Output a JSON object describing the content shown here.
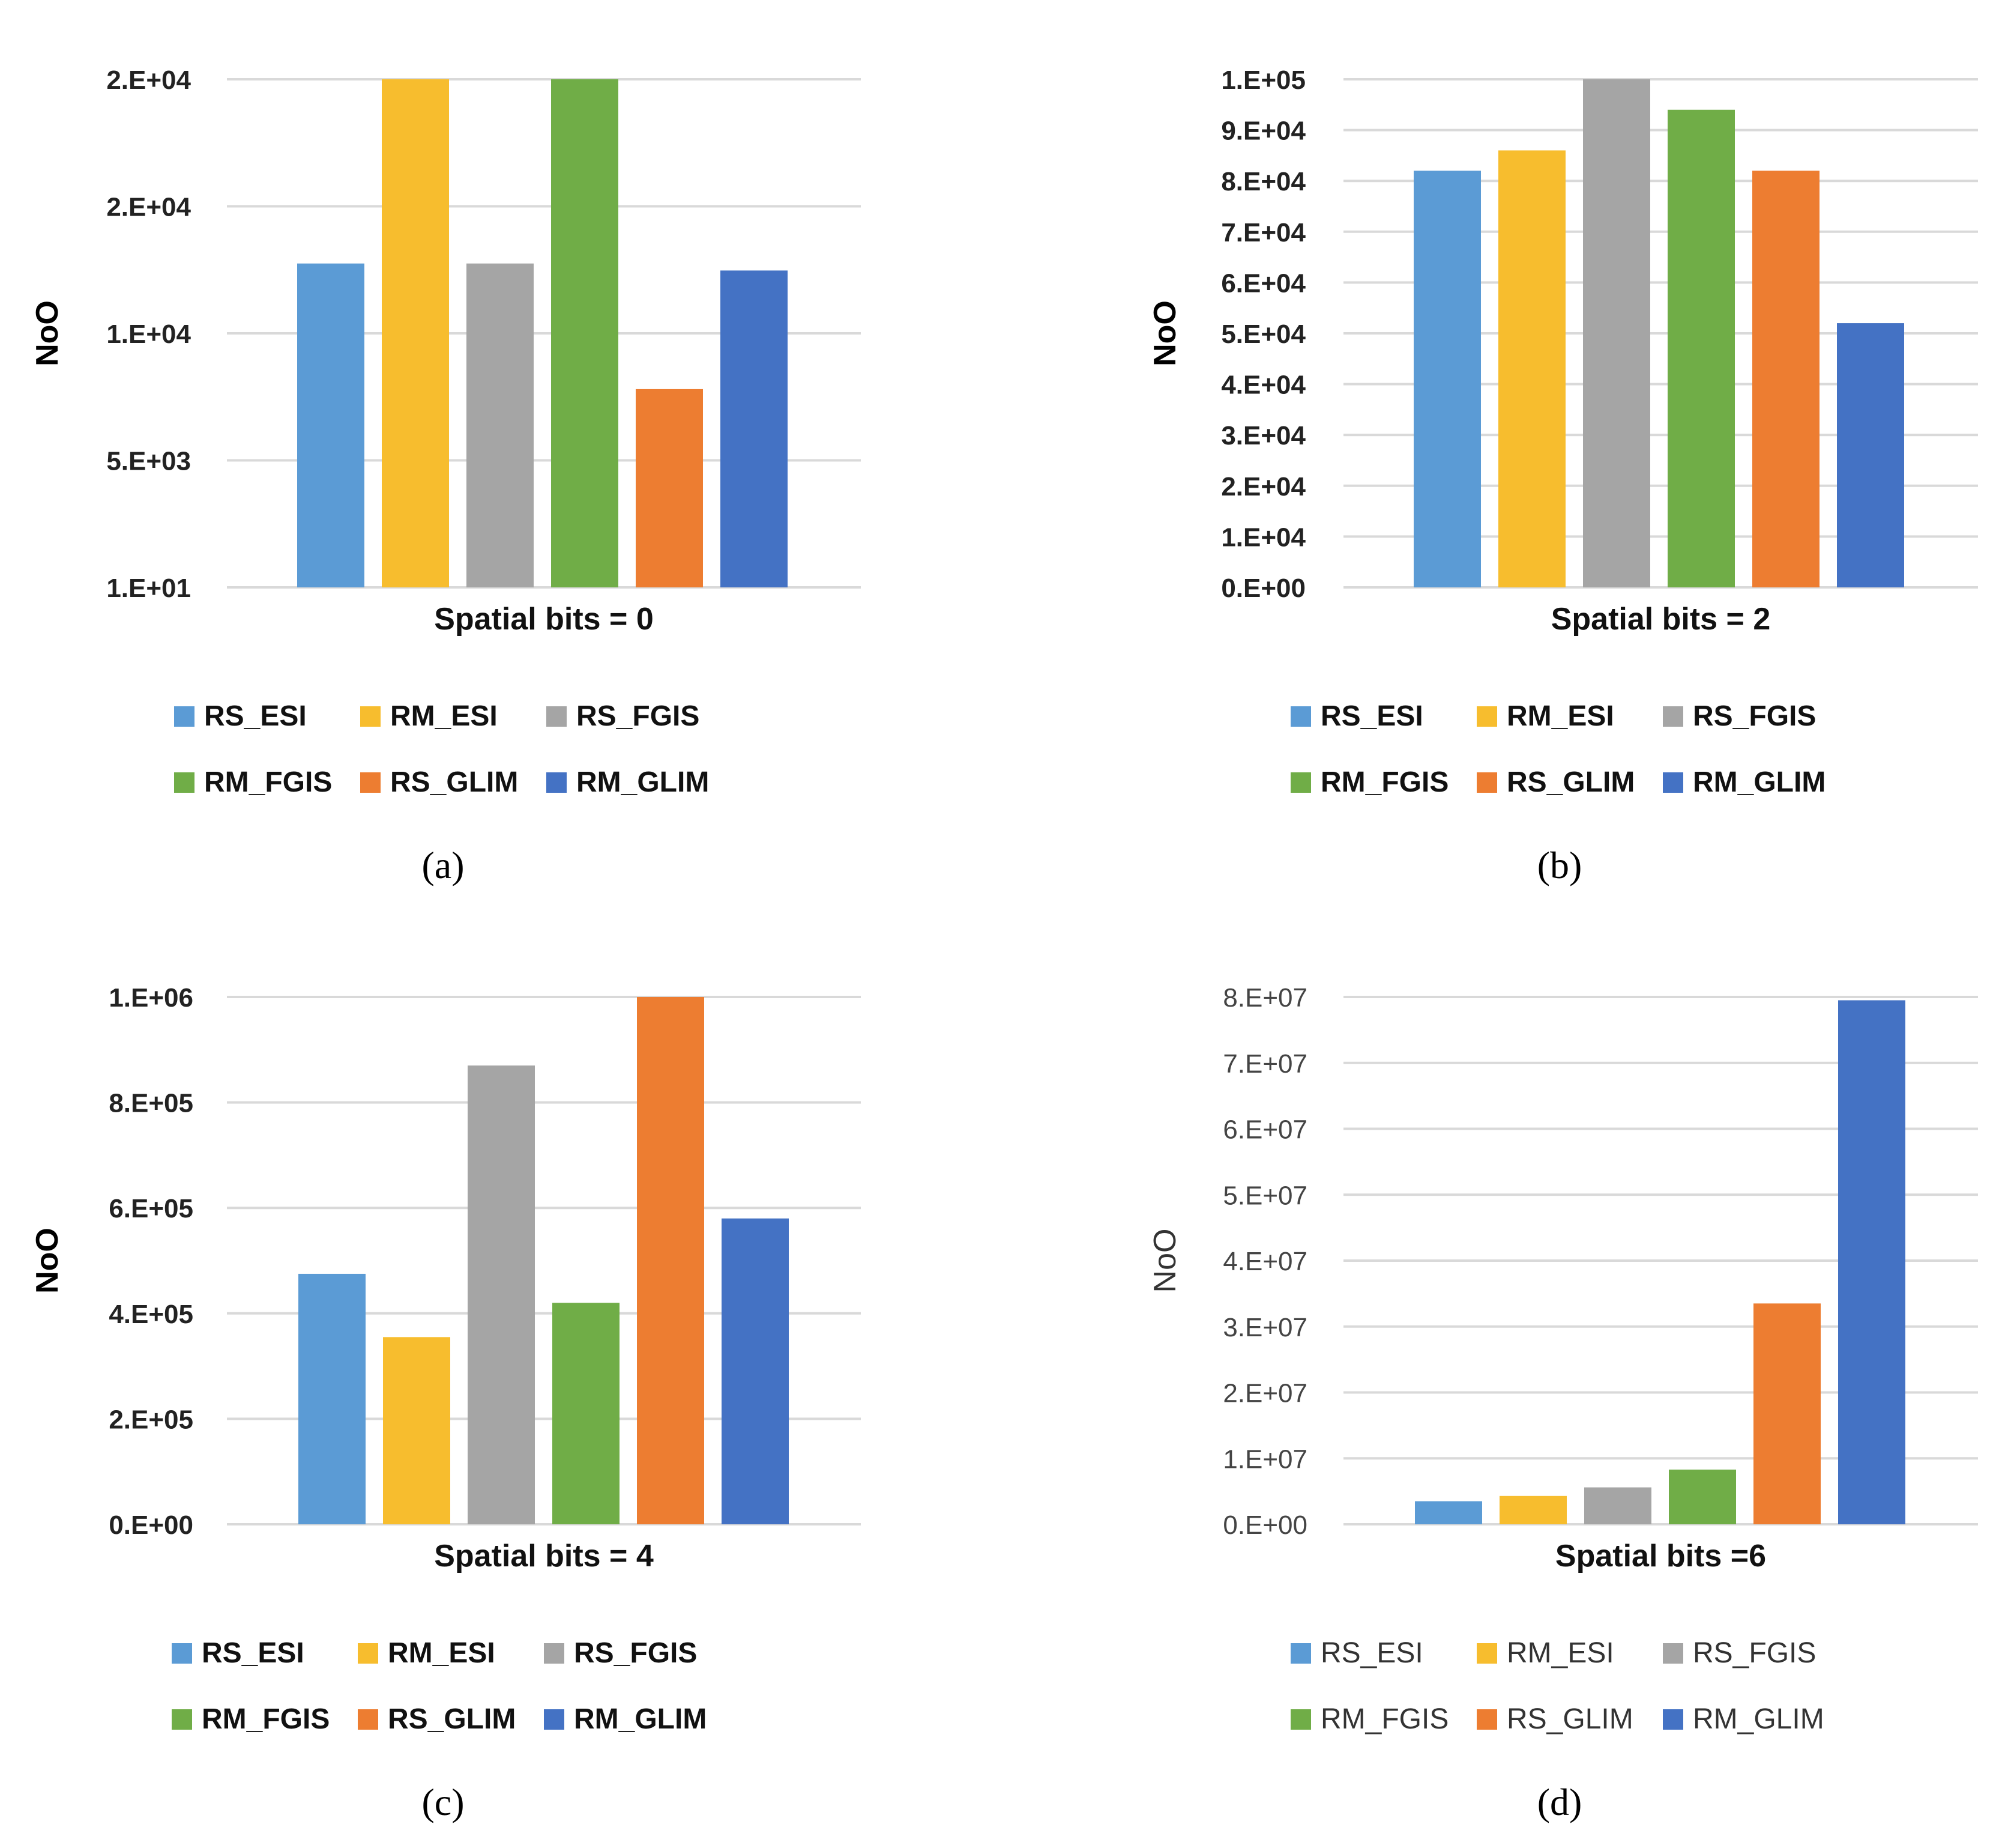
{
  "colors": {
    "RS_ESI": "#5b9bd5",
    "RM_ESI": "#f7bd2e",
    "RS_FGIS": "#a5a5a5",
    "RM_FGIS": "#70ad47",
    "RS_GLIM": "#ed7d31",
    "RM_GLIM": "#4472c4"
  },
  "chart_data": [
    {
      "type": "bar",
      "caption": "(a)",
      "xlabel": "Spatial bits = 0",
      "ylabel": "NoO",
      "ytick_labels": [
        "1.E+01",
        "5.E+03",
        "1.E+04",
        "2.E+04",
        "2.E+04"
      ],
      "ylim": [
        10,
        21000
      ],
      "series": [
        {
          "name": "RS_ESI",
          "value": 13390
        },
        {
          "name": "RM_ESI",
          "value": 21000
        },
        {
          "name": "RS_FGIS",
          "value": 13390
        },
        {
          "name": "RM_FGIS",
          "value": 21000
        },
        {
          "name": "RS_GLIM",
          "value": 8200
        },
        {
          "name": "RM_GLIM",
          "value": 13100
        }
      ],
      "legend": [
        "RS_ESI",
        "RM_ESI",
        "RS_FGIS",
        "RM_FGIS",
        "RS_GLIM",
        "RM_GLIM"
      ],
      "style": "bold"
    },
    {
      "type": "bar",
      "caption": "(b)",
      "xlabel": "Spatial bits = 2",
      "ylabel": "NoO",
      "ytick_labels": [
        "0.E+00",
        "1.E+04",
        "2.E+04",
        "3.E+04",
        "4.E+04",
        "5.E+04",
        "6.E+04",
        "7.E+04",
        "8.E+04",
        "9.E+04",
        "1.E+05"
      ],
      "ylim": [
        0,
        100000
      ],
      "series": [
        {
          "name": "RS_ESI",
          "value": 82000
        },
        {
          "name": "RM_ESI",
          "value": 86000
        },
        {
          "name": "RS_FGIS",
          "value": 100000
        },
        {
          "name": "RM_FGIS",
          "value": 94000
        },
        {
          "name": "RS_GLIM",
          "value": 82000
        },
        {
          "name": "RM_GLIM",
          "value": 52000
        }
      ],
      "legend": [
        "RS_ESI",
        "RM_ESI",
        "RS_FGIS",
        "RM_FGIS",
        "RS_GLIM",
        "RM_GLIM"
      ],
      "style": "bold"
    },
    {
      "type": "bar",
      "caption": "(c)",
      "xlabel": "Spatial bits = 4",
      "ylabel": "NoO",
      "ytick_labels": [
        "0.E+00",
        "2.E+05",
        "4.E+05",
        "6.E+05",
        "8.E+05",
        "1.E+06"
      ],
      "ylim": [
        0,
        1000000
      ],
      "series": [
        {
          "name": "RS_ESI",
          "value": 475000
        },
        {
          "name": "RM_ESI",
          "value": 355000
        },
        {
          "name": "RS_FGIS",
          "value": 870000
        },
        {
          "name": "RM_FGIS",
          "value": 420000
        },
        {
          "name": "RS_GLIM",
          "value": 1000000
        },
        {
          "name": "RM_GLIM",
          "value": 580000
        }
      ],
      "legend": [
        "RS_ESI",
        "RM_ESI",
        "RS_FGIS",
        "RM_FGIS",
        "RS_GLIM",
        "RM_GLIM"
      ],
      "style": "bold"
    },
    {
      "type": "bar",
      "caption": "(d)",
      "xlabel": "Spatial bits =6",
      "ylabel": "NoO",
      "ytick_labels": [
        "0.E+00",
        "1.E+07",
        "2.E+07",
        "3.E+07",
        "4.E+07",
        "5.E+07",
        "6.E+07",
        "7.E+07",
        "8.E+07"
      ],
      "ylim": [
        0,
        80000000
      ],
      "series": [
        {
          "name": "RS_ESI",
          "value": 3500000
        },
        {
          "name": "RM_ESI",
          "value": 4300000
        },
        {
          "name": "RS_FGIS",
          "value": 5600000
        },
        {
          "name": "RM_FGIS",
          "value": 8300000
        },
        {
          "name": "RS_GLIM",
          "value": 33500000
        },
        {
          "name": "RM_GLIM",
          "value": 79500000
        }
      ],
      "legend": [
        "RS_ESI",
        "RM_ESI",
        "RS_FGIS",
        "RM_FGIS",
        "RS_GLIM",
        "RM_GLIM"
      ],
      "style": "light"
    }
  ]
}
